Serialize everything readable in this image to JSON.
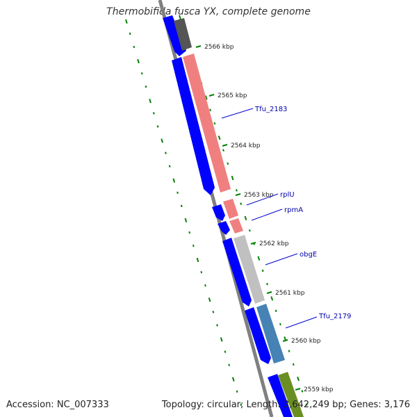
{
  "title": "Thermobifida fusca YX, complete genome",
  "footer": {
    "accession": "Accession: NC_007333",
    "summary": "Topology: circular; Length: 3,642,249 bp; Genes: 3,176"
  },
  "colors": {
    "backbone": "#808080",
    "cds_forward": "#0000ff",
    "gc_skew": "#008000",
    "leader": "#0000cc"
  },
  "ticks": [
    {
      "label": "2566 kbp"
    },
    {
      "label": "2565 kbp"
    },
    {
      "label": "2564 kbp"
    },
    {
      "label": "2563 kbp"
    },
    {
      "label": "2562 kbp"
    },
    {
      "label": "2561 kbp"
    },
    {
      "label": "2560 kbp"
    },
    {
      "label": "2559 kbp"
    }
  ],
  "gene_labels": [
    {
      "label": "Tfu_2183"
    },
    {
      "label": "rplU"
    },
    {
      "label": "rpmA"
    },
    {
      "label": "obgE"
    },
    {
      "label": "Tfu_2179"
    }
  ]
}
